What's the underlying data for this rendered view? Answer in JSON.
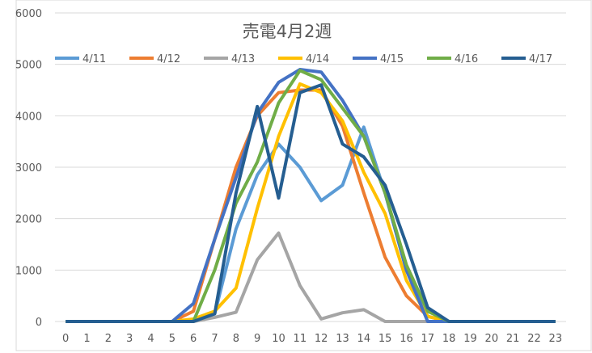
{
  "chart_data": {
    "type": "line",
    "title": "売電4月2週",
    "categories": [
      "0",
      "1",
      "2",
      "3",
      "4",
      "5",
      "6",
      "7",
      "8",
      "9",
      "10",
      "11",
      "12",
      "13",
      "14",
      "15",
      "16",
      "17",
      "18",
      "19",
      "20",
      "21",
      "22",
      "23"
    ],
    "ylim": [
      0,
      6000
    ],
    "yticks": [
      "0",
      "1000",
      "2000",
      "3000",
      "4000",
      "5000",
      "6000"
    ],
    "grid": true,
    "legend": "top",
    "series": [
      {
        "name": "4/11",
        "color": "#5B9BD5",
        "values": [
          0,
          0,
          0,
          0,
          0,
          0,
          0,
          150,
          1800,
          2850,
          3450,
          3000,
          2350,
          2650,
          3780,
          2500,
          1000,
          100,
          0,
          0,
          0,
          0,
          0,
          0
        ]
      },
      {
        "name": "4/12",
        "color": "#ED7D31",
        "values": [
          0,
          0,
          0,
          0,
          0,
          0,
          200,
          1600,
          3000,
          4000,
          4450,
          4500,
          4500,
          3800,
          2500,
          1250,
          500,
          100,
          0,
          0,
          0,
          0,
          0,
          0
        ]
      },
      {
        "name": "4/13",
        "color": "#A5A5A5",
        "values": [
          0,
          0,
          0,
          0,
          0,
          0,
          0,
          80,
          180,
          1200,
          1720,
          700,
          50,
          170,
          230,
          0,
          0,
          0,
          0,
          0,
          0,
          0,
          0,
          0
        ]
      },
      {
        "name": "4/14",
        "color": "#FFC000",
        "values": [
          0,
          0,
          0,
          0,
          0,
          0,
          50,
          200,
          650,
          2200,
          3600,
          4620,
          4450,
          3900,
          2900,
          2100,
          800,
          100,
          0,
          0,
          0,
          0,
          0,
          0
        ]
      },
      {
        "name": "4/15",
        "color": "#4472C4",
        "values": [
          0,
          0,
          0,
          0,
          0,
          0,
          350,
          1600,
          2800,
          4050,
          4650,
          4900,
          4850,
          4300,
          3600,
          2500,
          1000,
          0,
          0,
          0,
          0,
          0,
          0,
          0
        ]
      },
      {
        "name": "4/16",
        "color": "#70AD47",
        "values": [
          0,
          0,
          0,
          0,
          0,
          0,
          0,
          1000,
          2300,
          3100,
          4250,
          4880,
          4700,
          4150,
          3600,
          2500,
          1100,
          200,
          0,
          0,
          0,
          0,
          0,
          0
        ]
      },
      {
        "name": "4/17",
        "color": "#255E91",
        "values": [
          0,
          0,
          0,
          0,
          0,
          0,
          0,
          150,
          2500,
          4180,
          2400,
          4450,
          4600,
          3450,
          3200,
          2650,
          1500,
          270,
          0,
          0,
          0,
          0,
          0,
          0
        ]
      }
    ]
  }
}
